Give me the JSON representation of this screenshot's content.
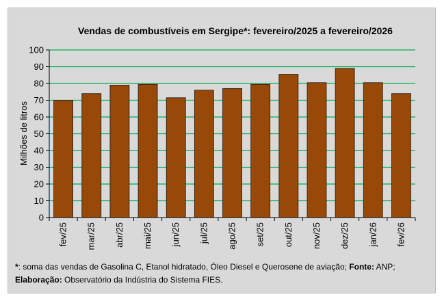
{
  "chart_data": {
    "type": "bar",
    "title": "Vendas de combustíveis em Sergipe*: fevereiro/2025 a fevereiro/2026",
    "xlabel": "",
    "ylabel": "Milhões de litros",
    "ylim": [
      0,
      100
    ],
    "yticks": [
      0,
      10,
      20,
      30,
      40,
      50,
      60,
      70,
      80,
      90,
      100
    ],
    "grid": true,
    "legend": "none",
    "categories": [
      "fev/25",
      "mar/25",
      "abr/25",
      "mai/25",
      "jun/25",
      "jul/25",
      "ago/25",
      "set/25",
      "out/25",
      "nov/25",
      "dez/25",
      "jan/26",
      "fev/26"
    ],
    "values": [
      70.0,
      74.0,
      79.0,
      79.5,
      71.5,
      76.0,
      77.0,
      79.5,
      85.5,
      80.5,
      89.0,
      80.5,
      74.0
    ],
    "colors": {
      "bar": "#984807",
      "bar_border": "#1a1a1a",
      "grid": "#00b050",
      "background": "#d9d9d9"
    }
  },
  "footnote": {
    "line1_mark": "*",
    "line1_text": ": soma das vendas de Gasolina C, Etanol hidratado, Óleo Diesel e Querosene de aviação; ",
    "line1_source_label": "Fonte:",
    "line1_source": " ANP;",
    "line2_label": "Elaboração:",
    "line2_text": " Observatório da Indústria do Sistema FIES."
  }
}
